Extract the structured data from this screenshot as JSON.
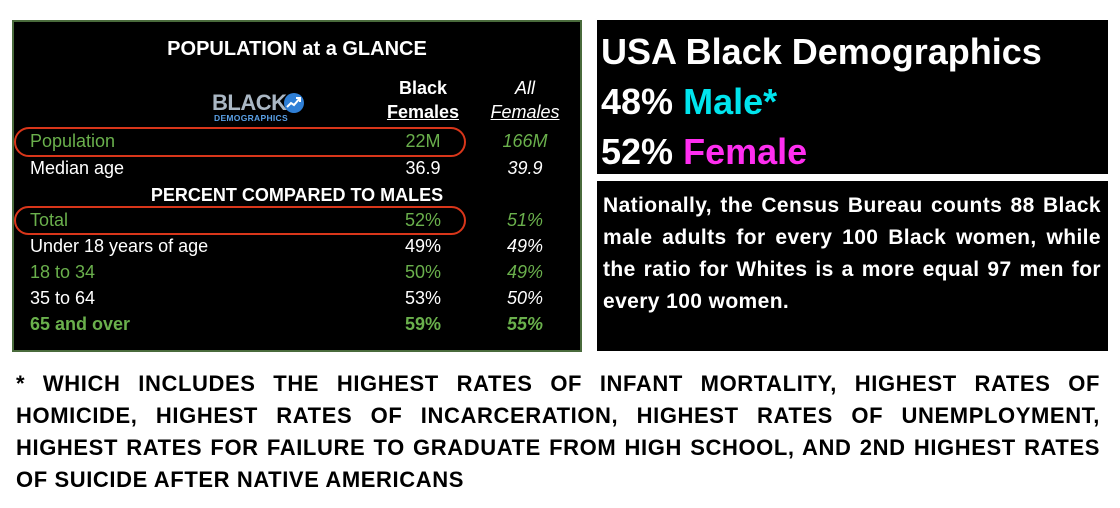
{
  "table": {
    "title": "POPULATION at a GLANCE",
    "logo": {
      "word": "BLACK",
      "sub": "DEMOGRAPHICS"
    },
    "col1": {
      "line1": "Black",
      "line2": "Females"
    },
    "col2": {
      "line1": "All",
      "line2": "Females"
    },
    "rows_top": [
      {
        "label": "Population",
        "v1": "22M",
        "v2": "166M"
      },
      {
        "label": "Median age",
        "v1": "36.9",
        "v2": "39.9"
      }
    ],
    "section": "PERCENT COMPARED TO MALES",
    "rows_pct": [
      {
        "label": "Total",
        "v1": "52%",
        "v2": "51%"
      },
      {
        "label": "Under 18 years of age",
        "v1": "49%",
        "v2": "49%"
      },
      {
        "label": "18 to 34",
        "v1": "50%",
        "v2": "49%"
      },
      {
        "label": "35 to 64",
        "v1": "53%",
        "v2": "50%"
      },
      {
        "label": "65 and over",
        "v1": "59%",
        "v2": "55%"
      }
    ],
    "colors": {
      "green": "#6ab04c",
      "highlight_ring": "#d9361a"
    }
  },
  "demographics": {
    "heading": "USA Black Demographics",
    "male_pct": "48%",
    "male_label": "Male*",
    "female_pct": "52%",
    "female_label": "Female",
    "colors": {
      "male": "#00e5ee",
      "female": "#ff2ef0"
    }
  },
  "census_text": "Nationally, the Census Bureau counts 88 Black male adults for every 100 Black women, while the ratio for Whites is a more equal 97 men for every 100 women.",
  "footnote": "* WHICH INCLUDES THE HIGHEST RATES OF INFANT MORTALITY, HIGHEST RATES OF HOMICIDE, HIGHEST RATES OF INCARCERATION, HIGHEST RATES OF UNEMPLOYMENT, HIGHEST RATES FOR FAILURE TO GRADUATE FROM HIGH SCHOOL, AND 2ND HIGHEST RATES OF SUICIDE AFTER NATIVE AMERICANS"
}
